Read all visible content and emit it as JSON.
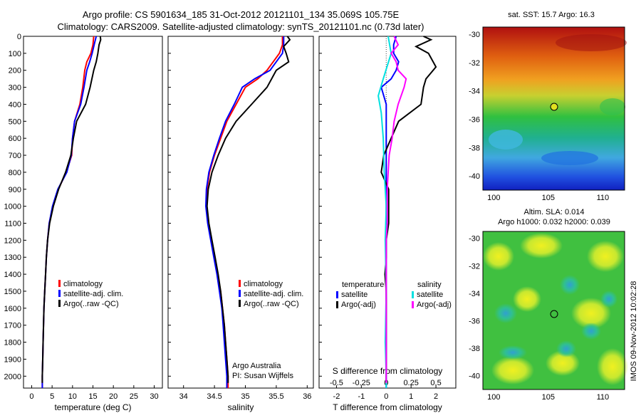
{
  "header": {
    "line1": "Argo profile: CS 5901634_185 31-Oct-2012 20121101_134 35.069S 105.75E",
    "line2": "Climatology: CARS2009. Satellite-adjusted climatology: synTS_20121101.nc (0.73d later)"
  },
  "side_stamp": "IMOS 09-Nov-2012 10:02:28",
  "colors": {
    "climatology": "#ff0000",
    "satellite": "#0000ff",
    "argo": "#000000",
    "sat_salinity": "#00e0e0",
    "argo_salinity": "#ff00ff"
  },
  "chart_data": [
    {
      "type": "line",
      "xlabel": "temperature (deg C)",
      "ylabel": "",
      "xlim": [
        -2,
        32
      ],
      "ylim": [
        2070,
        0
      ],
      "xticks": [
        0,
        5,
        10,
        15,
        20,
        25,
        30
      ],
      "yticks": [
        0,
        100,
        200,
        300,
        400,
        500,
        600,
        700,
        800,
        900,
        1000,
        1100,
        1200,
        1300,
        1400,
        1500,
        1600,
        1700,
        1800,
        1900,
        2000
      ],
      "legend": {
        "placement": "lower-right",
        "entries": [
          "climatology",
          "satellite-adj. clim.",
          "Argo(..raw -QC)"
        ]
      },
      "series": [
        {
          "name": "climatology",
          "color": "#ff0000",
          "points": [
            [
              15.2,
              0
            ],
            [
              15.0,
              50
            ],
            [
              14.5,
              100
            ],
            [
              13.5,
              150
            ],
            [
              13.0,
              200
            ],
            [
              12.5,
              300
            ],
            [
              11.8,
              400
            ],
            [
              10.5,
              500
            ],
            [
              10.0,
              600
            ],
            [
              9.8,
              700
            ],
            [
              8.5,
              800
            ],
            [
              6.5,
              900
            ],
            [
              5.2,
              1000
            ],
            [
              4.3,
              1100
            ],
            [
              3.9,
              1200
            ],
            [
              3.6,
              1300
            ],
            [
              3.4,
              1400
            ],
            [
              3.2,
              1500
            ],
            [
              3.0,
              1600
            ],
            [
              2.9,
              1700
            ],
            [
              2.8,
              1800
            ],
            [
              2.7,
              1900
            ],
            [
              2.6,
              2000
            ],
            [
              2.6,
              2070
            ]
          ]
        },
        {
          "name": "satellite-adj. clim.",
          "color": "#0000ff",
          "points": [
            [
              15.8,
              0
            ],
            [
              15.3,
              50
            ],
            [
              14.8,
              100
            ],
            [
              14.2,
              150
            ],
            [
              13.5,
              200
            ],
            [
              12.8,
              300
            ],
            [
              12.0,
              400
            ],
            [
              10.5,
              500
            ],
            [
              10.0,
              600
            ],
            [
              9.7,
              700
            ],
            [
              8.6,
              800
            ],
            [
              6.4,
              900
            ],
            [
              5.1,
              1000
            ],
            [
              4.3,
              1100
            ],
            [
              3.9,
              1200
            ],
            [
              3.6,
              1300
            ],
            [
              3.4,
              1400
            ],
            [
              3.2,
              1500
            ],
            [
              3.0,
              1600
            ],
            [
              2.9,
              1700
            ],
            [
              2.8,
              1800
            ],
            [
              2.7,
              1900
            ],
            [
              2.6,
              2000
            ],
            [
              2.6,
              2070
            ]
          ]
        },
        {
          "name": "Argo(..raw -QC)",
          "color": "#000000",
          "points": [
            [
              16.8,
              0
            ],
            [
              16.9,
              20
            ],
            [
              16.5,
              50
            ],
            [
              16.2,
              100
            ],
            [
              15.8,
              150
            ],
            [
              15.2,
              200
            ],
            [
              14.3,
              300
            ],
            [
              13.2,
              400
            ],
            [
              11.0,
              500
            ],
            [
              10.2,
              600
            ],
            [
              9.6,
              700
            ],
            [
              8.3,
              800
            ],
            [
              6.6,
              900
            ],
            [
              5.3,
              1000
            ],
            [
              4.4,
              1100
            ],
            [
              3.9,
              1200
            ],
            [
              3.6,
              1300
            ],
            [
              3.4,
              1400
            ],
            [
              3.2,
              1500
            ],
            [
              3.0,
              1600
            ],
            [
              2.9,
              1700
            ],
            [
              2.8,
              1800
            ],
            [
              2.7,
              1900
            ],
            [
              2.6,
              2000
            ],
            [
              2.6,
              2040
            ]
          ]
        }
      ]
    },
    {
      "type": "line",
      "xlabel": "salinity",
      "ylabel": "",
      "xlim": [
        33.75,
        36.1
      ],
      "ylim": [
        2070,
        0
      ],
      "xticks": [
        34,
        34.5,
        35,
        35.5,
        36
      ],
      "legend": {
        "placement": "lower-right",
        "entries": [
          "climatology",
          "satellite-adj. clim.",
          "Argo(..raw -QC)"
        ]
      },
      "annotation": [
        "Argo Australia",
        "PI: Susan Wijffels"
      ],
      "series": [
        {
          "name": "climatology",
          "color": "#ff0000",
          "points": [
            [
              35.6,
              0
            ],
            [
              35.6,
              50
            ],
            [
              35.55,
              100
            ],
            [
              35.45,
              150
            ],
            [
              35.35,
              200
            ],
            [
              35.2,
              250
            ],
            [
              35.0,
              300
            ],
            [
              34.85,
              400
            ],
            [
              34.7,
              500
            ],
            [
              34.6,
              600
            ],
            [
              34.5,
              700
            ],
            [
              34.42,
              800
            ],
            [
              34.38,
              900
            ],
            [
              34.37,
              1000
            ],
            [
              34.4,
              1100
            ],
            [
              34.45,
              1200
            ],
            [
              34.5,
              1300
            ],
            [
              34.55,
              1400
            ],
            [
              34.6,
              1500
            ],
            [
              34.63,
              1600
            ],
            [
              34.66,
              1700
            ],
            [
              34.68,
              1800
            ],
            [
              34.7,
              1900
            ],
            [
              34.72,
              2000
            ],
            [
              34.72,
              2070
            ]
          ]
        },
        {
          "name": "satellite-adj. clim.",
          "color": "#0000ff",
          "points": [
            [
              35.62,
              0
            ],
            [
              35.62,
              50
            ],
            [
              35.6,
              100
            ],
            [
              35.5,
              150
            ],
            [
              35.4,
              200
            ],
            [
              35.15,
              250
            ],
            [
              34.95,
              300
            ],
            [
              34.82,
              400
            ],
            [
              34.68,
              500
            ],
            [
              34.58,
              600
            ],
            [
              34.49,
              700
            ],
            [
              34.41,
              800
            ],
            [
              34.37,
              900
            ],
            [
              34.36,
              1000
            ],
            [
              34.39,
              1100
            ],
            [
              34.44,
              1200
            ],
            [
              34.49,
              1300
            ],
            [
              34.54,
              1400
            ],
            [
              34.58,
              1500
            ],
            [
              34.62,
              1600
            ],
            [
              34.64,
              1700
            ],
            [
              34.66,
              1800
            ],
            [
              34.68,
              1900
            ],
            [
              34.7,
              2000
            ],
            [
              34.7,
              2070
            ]
          ]
        },
        {
          "name": "Argo(..raw -QC)",
          "color": "#000000",
          "points": [
            [
              35.68,
              0
            ],
            [
              35.72,
              20
            ],
            [
              35.62,
              60
            ],
            [
              35.66,
              100
            ],
            [
              35.7,
              150
            ],
            [
              35.5,
              200
            ],
            [
              35.35,
              300
            ],
            [
              35.1,
              400
            ],
            [
              34.85,
              500
            ],
            [
              34.68,
              600
            ],
            [
              34.56,
              700
            ],
            [
              34.46,
              800
            ],
            [
              34.4,
              900
            ],
            [
              34.38,
              1000
            ],
            [
              34.41,
              1100
            ],
            [
              34.46,
              1200
            ],
            [
              34.51,
              1300
            ],
            [
              34.56,
              1400
            ],
            [
              34.6,
              1500
            ],
            [
              34.63,
              1600
            ],
            [
              34.66,
              1700
            ],
            [
              34.68,
              1800
            ],
            [
              34.7,
              1900
            ],
            [
              34.72,
              2000
            ],
            [
              34.72,
              2040
            ]
          ]
        }
      ]
    },
    {
      "type": "line",
      "xlabel": "T difference from climatology",
      "x2label": "S difference from climatology",
      "ylabel": "",
      "xlim": [
        -2.7,
        2.8
      ],
      "ylim": [
        2070,
        0
      ],
      "xticks": [
        -2,
        -1,
        0,
        1,
        2
      ],
      "x2ticks": [
        -0.5,
        -0.25,
        0,
        0.25,
        0.5
      ],
      "legend": {
        "placement": "lower",
        "entries": [
          "temperature",
          "satellite",
          "Argo(-adj)",
          "salinity",
          "satellite",
          "Argo(-adj)"
        ]
      },
      "series": [
        {
          "name": "satellite",
          "group": "temperature",
          "color": "#0000ff",
          "points": [
            [
              0.4,
              0
            ],
            [
              0.3,
              50
            ],
            [
              0.3,
              100
            ],
            [
              0.5,
              150
            ],
            [
              0.4,
              200
            ],
            [
              0.2,
              250
            ],
            [
              -0.2,
              300
            ],
            [
              0,
              400
            ],
            [
              0,
              500
            ],
            [
              0,
              600
            ],
            [
              0,
              700
            ],
            [
              0,
              900
            ],
            [
              0,
              1000
            ],
            [
              0,
              1200
            ],
            [
              0,
              1500
            ],
            [
              0,
              2070
            ]
          ]
        },
        {
          "name": "Argo(-adj)",
          "group": "temperature",
          "color": "#000000",
          "points": [
            [
              1.5,
              0
            ],
            [
              1.8,
              20
            ],
            [
              1.2,
              60
            ],
            [
              1.7,
              100
            ],
            [
              2.0,
              180
            ],
            [
              1.6,
              250
            ],
            [
              1.5,
              300
            ],
            [
              1.4,
              400
            ],
            [
              0.5,
              500
            ],
            [
              0.2,
              600
            ],
            [
              -0.1,
              700
            ],
            [
              -0.2,
              800
            ],
            [
              0.1,
              900
            ],
            [
              0.1,
              1000
            ],
            [
              0.1,
              1100
            ],
            [
              0,
              1200
            ],
            [
              0,
              1300
            ],
            [
              -0.05,
              1400
            ],
            [
              0,
              1500
            ],
            [
              0,
              1700
            ],
            [
              0,
              2000
            ],
            [
              0,
              2040
            ]
          ]
        },
        {
          "name": "satellite",
          "group": "salinity",
          "color": "#00e0e0",
          "points": [
            [
              0.02,
              0
            ],
            [
              0.05,
              100
            ],
            [
              -0.03,
              250
            ],
            [
              -0.08,
              350
            ],
            [
              -0.05,
              450
            ],
            [
              -0.03,
              600
            ],
            [
              -0.02,
              800
            ],
            [
              0,
              1000
            ],
            [
              -0.01,
              1200
            ],
            [
              0,
              1500
            ],
            [
              -0.01,
              1800
            ],
            [
              0,
              2000
            ],
            [
              0,
              2070
            ]
          ]
        },
        {
          "name": "Argo(-adj)",
          "group": "salinity",
          "color": "#ff00ff",
          "points": [
            [
              0.08,
              0
            ],
            [
              0.12,
              50
            ],
            [
              0.05,
              100
            ],
            [
              0.1,
              150
            ],
            [
              0.12,
              200
            ],
            [
              0.2,
              250
            ],
            [
              0.18,
              300
            ],
            [
              0.12,
              400
            ],
            [
              0.08,
              500
            ],
            [
              0.06,
              600
            ],
            [
              0.03,
              700
            ],
            [
              0.02,
              800
            ],
            [
              0.01,
              900
            ],
            [
              0.01,
              1000
            ],
            [
              0.01,
              1100
            ],
            [
              0,
              1200
            ],
            [
              0,
              1300
            ],
            [
              0,
              1500
            ],
            [
              0,
              1800
            ],
            [
              0,
              2000
            ],
            [
              0,
              2040
            ]
          ]
        }
      ]
    },
    {
      "type": "heatmap",
      "title": "sat. SST: 15.7 Argo: 16.3",
      "xlim": [
        99,
        112
      ],
      "ylim": [
        -41,
        -29.5
      ],
      "xticks": [
        100,
        105,
        110
      ],
      "yticks": [
        -30,
        -32,
        -34,
        -36,
        -38,
        -40
      ],
      "marker": {
        "lon": 105.75,
        "lat": -35.069
      },
      "colormap": "jet"
    },
    {
      "type": "heatmap",
      "title": "Altim. SLA: 0.014",
      "subtitle": "Argo h1000: 0.032 h2000: 0.039",
      "xlim": [
        99,
        112
      ],
      "ylim": [
        -41,
        -29.5
      ],
      "xticks": [
        100,
        105,
        110
      ],
      "yticks": [
        -30,
        -32,
        -34,
        -36,
        -38,
        -40
      ],
      "marker": {
        "lon": 105.75,
        "lat": -35.069
      },
      "colormap": "jet"
    }
  ]
}
